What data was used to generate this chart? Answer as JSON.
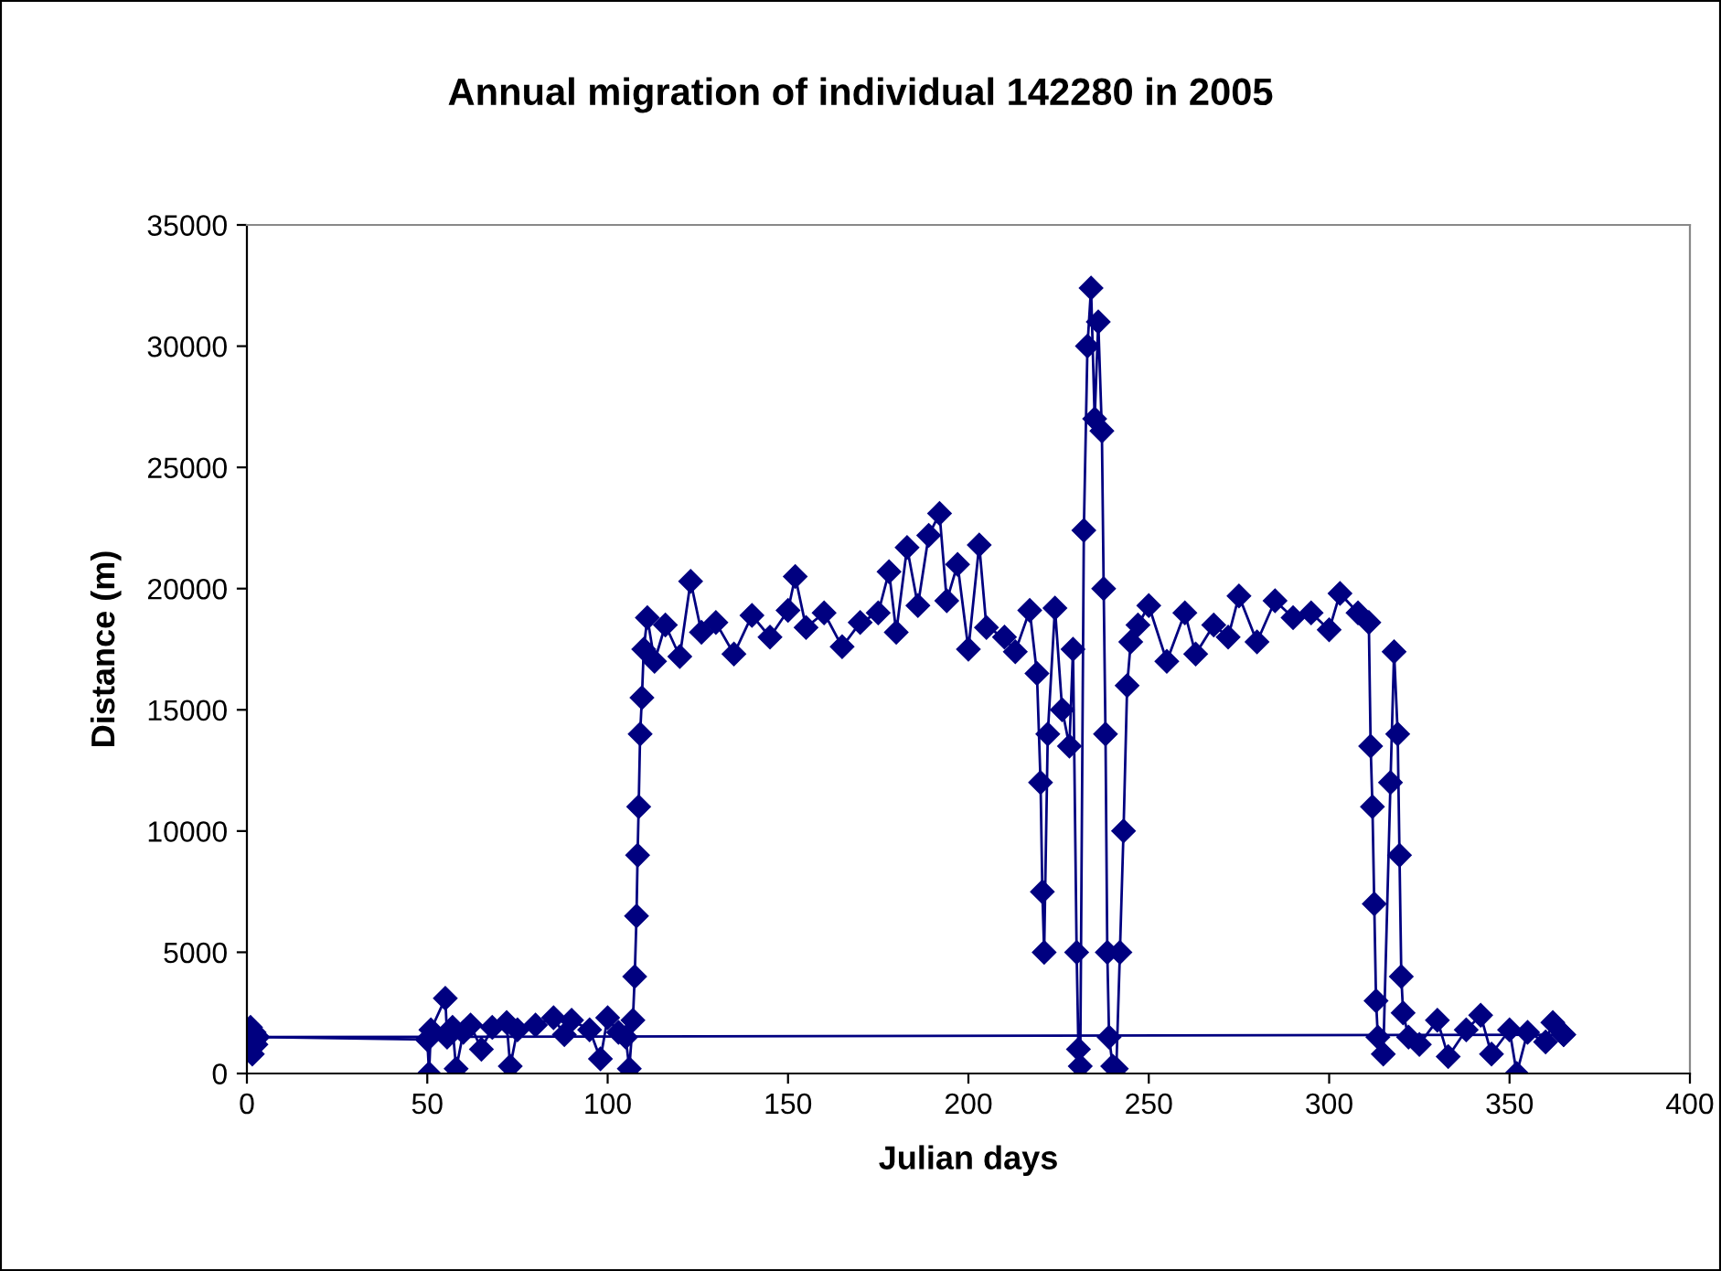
{
  "chart_data": {
    "type": "line",
    "title": "Annual migration of individual 142280 in 2005",
    "xlabel": "Julian days",
    "ylabel": "Distance (m)",
    "xlim": [
      0,
      400
    ],
    "xticks": [
      0,
      50,
      100,
      150,
      200,
      250,
      300,
      350,
      400
    ],
    "ylim": [
      0,
      35000
    ],
    "yticks": [
      0,
      5000,
      10000,
      15000,
      20000,
      25000,
      30000,
      35000
    ],
    "marker": "diamond",
    "line_style": "solid",
    "grid": false,
    "series": [
      {
        "color": "#000080",
        "x": [
          0.5,
          1,
          1.5,
          2,
          2.5,
          3,
          50,
          50.5,
          51,
          55,
          55.5,
          57,
          58,
          60,
          62,
          65,
          68,
          72,
          73,
          75,
          80,
          85,
          88,
          90,
          95,
          98,
          100,
          103,
          105,
          106,
          107,
          107.5,
          108,
          108.3,
          108.6,
          109,
          109.5,
          110,
          111,
          113,
          116,
          120,
          123,
          126,
          130,
          135,
          140,
          145,
          150,
          152,
          155,
          160,
          165,
          170,
          175,
          178,
          180,
          183,
          186,
          189,
          192,
          194,
          197,
          200,
          203,
          205,
          210,
          213,
          217,
          219,
          220,
          220.5,
          221,
          222,
          224,
          226,
          228,
          229,
          230,
          230.5,
          231,
          232,
          233,
          234,
          235,
          236,
          237,
          237.5,
          238,
          238.5,
          239,
          240,
          241,
          242,
          243,
          244,
          245,
          247,
          250,
          255,
          260,
          263,
          268,
          272,
          275,
          280,
          285,
          290,
          295,
          300,
          303,
          308,
          311,
          311.5,
          312,
          312.5,
          313,
          313.5,
          315,
          317,
          318,
          319,
          319.5,
          320,
          320.5,
          322,
          325,
          330,
          333,
          338,
          342,
          345,
          350,
          352,
          355,
          360,
          362,
          365
        ],
        "values": [
          1500,
          1900,
          800,
          1700,
          1200,
          1500,
          1400,
          0,
          1800,
          3100,
          1500,
          1900,
          200,
          1700,
          2000,
          1000,
          1900,
          2100,
          300,
          1800,
          2000,
          2300,
          1600,
          2200,
          1800,
          600,
          2300,
          1700,
          1500,
          200,
          2200,
          4000,
          6500,
          9000,
          11000,
          14000,
          15500,
          17500,
          18800,
          17000,
          18500,
          17200,
          20300,
          18200,
          18600,
          17300,
          18900,
          18000,
          19100,
          20500,
          18400,
          19000,
          17600,
          18600,
          19000,
          20700,
          18200,
          21700,
          19300,
          22200,
          23100,
          19500,
          21000,
          17500,
          21800,
          18400,
          18000,
          17400,
          19100,
          16500,
          12000,
          7500,
          5000,
          14000,
          19200,
          15000,
          13500,
          17500,
          5000,
          1000,
          300,
          22400,
          30000,
          32400,
          27000,
          31000,
          26500,
          20000,
          14000,
          5000,
          1500,
          300,
          200,
          5000,
          10000,
          16000,
          17800,
          18500,
          19300,
          17000,
          19000,
          17300,
          18500,
          18000,
          19700,
          17800,
          19500,
          18800,
          19000,
          18300,
          19800,
          19000,
          18600,
          13500,
          11000,
          7000,
          3000,
          1500,
          800,
          12000,
          17400,
          14000,
          9000,
          4000,
          2500,
          1500,
          1200,
          2200,
          700,
          1800,
          2400,
          800,
          1800,
          0,
          1700,
          1300,
          2100,
          1600
        ]
      },
      {
        "color": "#000080",
        "x": [
          0.5,
          365
        ],
        "values": [
          1500,
          1600
        ]
      }
    ]
  }
}
